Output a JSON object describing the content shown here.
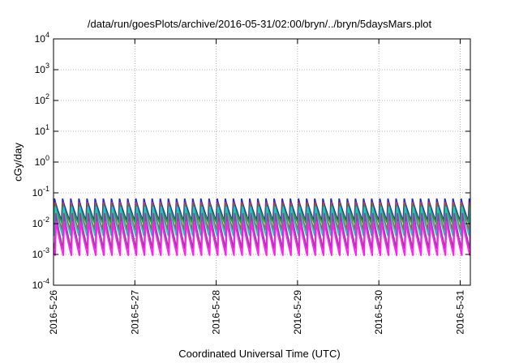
{
  "chart_data": {
    "type": "line",
    "title": "/data/run/goesPlots/archive/2016-05-31/02:00/bryn/../bryn/5daysMars.plot",
    "xlabel": "Coordinated Universal Time (UTC)",
    "ylabel": "cGy/day",
    "y_scale": "log",
    "ylim": [
      0.0001,
      10000
    ],
    "xlim": [
      "2016-05-26T00:00",
      "2016-05-31T03:00"
    ],
    "grid": true,
    "y_ticks": [
      {
        "base": "10",
        "exp": "-4"
      },
      {
        "base": "10",
        "exp": "-3"
      },
      {
        "base": "10",
        "exp": "-2"
      },
      {
        "base": "10",
        "exp": "-1"
      },
      {
        "base": "10",
        "exp": "0"
      },
      {
        "base": "10",
        "exp": "1"
      },
      {
        "base": "10",
        "exp": "2"
      },
      {
        "base": "10",
        "exp": "3"
      },
      {
        "base": "10",
        "exp": "4"
      }
    ],
    "x_ticks": [
      {
        "label": "2016-5-26",
        "value": "2016-05-26T00:00"
      },
      {
        "label": "2016-5-27",
        "value": "2016-05-27T00:00"
      },
      {
        "label": "2016-5-28",
        "value": "2016-05-28T00:00"
      },
      {
        "label": "2016-5-29",
        "value": "2016-05-29T00:00"
      },
      {
        "label": "2016-5-30",
        "value": "2016-05-30T00:00"
      },
      {
        "label": "2016-5-31",
        "value": "2016-05-31T00:00"
      }
    ],
    "cycle_period_hours": 2.4,
    "series": [
      {
        "color": "#1f2bd6",
        "peak": 0.065,
        "trough": 0.012
      },
      {
        "color": "#d23a2a",
        "peak": 0.05,
        "trough": 0.006
      },
      {
        "color": "#2a9a2a",
        "peak": 0.04,
        "trough": 0.01
      },
      {
        "color": "#15c9cf",
        "peak": 0.035,
        "trough": 0.004
      },
      {
        "color": "#9a3fa0",
        "peak": 0.022,
        "trough": 0.0015
      },
      {
        "color": "#ff22ee",
        "peak": 0.012,
        "trough": 0.0009
      }
    ]
  }
}
